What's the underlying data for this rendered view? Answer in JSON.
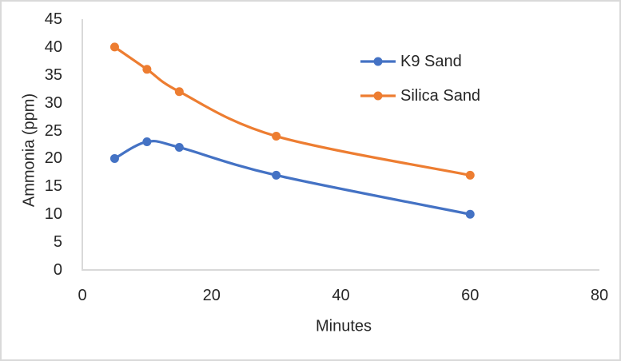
{
  "chart_data": {
    "type": "line",
    "title": "",
    "xlabel": "Minutes",
    "ylabel": "Ammonia (ppm)",
    "x": [
      5,
      10,
      15,
      30,
      60
    ],
    "series": [
      {
        "name": "K9 Sand",
        "color": "#4472C4",
        "values": [
          20,
          23,
          22,
          17,
          10
        ]
      },
      {
        "name": "Silica Sand",
        "color": "#ED7D31",
        "values": [
          40,
          36,
          32,
          24,
          17
        ]
      }
    ],
    "xlim": [
      0,
      80
    ],
    "ylim": [
      0,
      45
    ],
    "x_ticks": [
      0,
      20,
      40,
      60,
      80
    ],
    "y_ticks": [
      0,
      5,
      10,
      15,
      20,
      25,
      30,
      35,
      40,
      45
    ],
    "grid": false,
    "smooth_lines": true,
    "legend_position": "inside-upper-right"
  },
  "colors": {
    "axis_line": "#D9D9D9",
    "text": "#262626",
    "border": "#D9D9D9",
    "background": "#FFFFFF"
  }
}
